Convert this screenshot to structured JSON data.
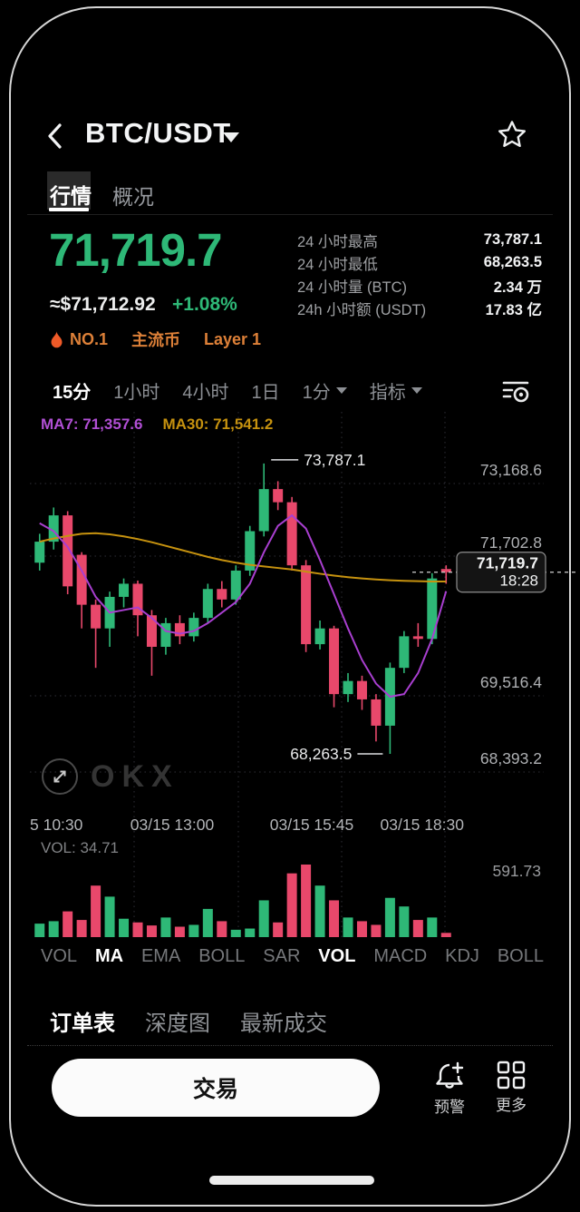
{
  "colors": {
    "up_green": "#2eb877",
    "down_red": "#e8486b",
    "ma7_purple": "#a93fd0",
    "ma30_yellow": "#c6920f",
    "badge_orange": "#dd8038",
    "grid": "#2e2e36",
    "axis_text": "#aeb0b3"
  },
  "header": {
    "title": "BTC/USDT"
  },
  "tabs": [
    {
      "label": "行情"
    },
    {
      "label": "概况"
    }
  ],
  "price": {
    "last": "71,719.7",
    "approx": "≈$71,712.92",
    "change": "+1.08%"
  },
  "badges": {
    "rank": "NO.1",
    "tag1": "主流币",
    "tag2": "Layer 1"
  },
  "stats": [
    {
      "label": "24 小时最高",
      "value": "73,787.1"
    },
    {
      "label": "24 小时最低",
      "value": "68,263.5"
    },
    {
      "label": "24 小时量 (BTC)",
      "value": "2.34 万"
    },
    {
      "label": "24h 小时额 (USDT)",
      "value": "17.83 亿"
    }
  ],
  "timeframes": [
    {
      "label": "15分"
    },
    {
      "label": "1小时"
    },
    {
      "label": "4小时"
    },
    {
      "label": "1日"
    },
    {
      "label": "1分"
    },
    {
      "label": "指标"
    }
  ],
  "chart_data": {
    "type": "candlestick",
    "ma7_label": "MA7: 71,357.6",
    "ma30_label": "MA30: 71,541.2",
    "high_label": "73,787.1",
    "low_label": "68,263.5",
    "last_price": "71,719.7",
    "last_time": "18:28",
    "vol_label": "VOL: 34.71",
    "vol_max_label": "591.73",
    "vol_max": 591.73,
    "price_range": [
      67280,
      74700
    ],
    "y_ticks": [
      "73,168.6",
      "71,702.8",
      "69,516.4",
      "68,393.2"
    ],
    "x_labels": [
      "5 10:30",
      "03/15 13:00",
      "03/15 15:45",
      "03/15 18:30"
    ],
    "candles": [
      [
        71900,
        72450,
        71750,
        72300
      ],
      [
        72300,
        72950,
        72150,
        72800
      ],
      [
        72800,
        72880,
        71300,
        71450
      ],
      [
        72050,
        72100,
        70650,
        71100
      ],
      [
        71100,
        71200,
        69900,
        70650
      ],
      [
        70650,
        71350,
        70300,
        71250
      ],
      [
        71250,
        71600,
        71050,
        71500
      ],
      [
        71500,
        71560,
        70500,
        70900
      ],
      [
        70900,
        71000,
        69750,
        70300
      ],
      [
        70300,
        70850,
        70150,
        70750
      ],
      [
        70750,
        70900,
        70350,
        70500
      ],
      [
        70500,
        70950,
        70400,
        70850
      ],
      [
        70850,
        71500,
        70750,
        71400
      ],
      [
        71400,
        71550,
        71050,
        71200
      ],
      [
        71200,
        71850,
        71100,
        71750
      ],
      [
        71750,
        72600,
        71650,
        72500
      ],
      [
        72500,
        73787.1,
        72400,
        73300
      ],
      [
        73300,
        73450,
        72900,
        73050
      ],
      [
        73050,
        73150,
        71750,
        71850
      ],
      [
        71850,
        71950,
        70200,
        70350
      ],
      [
        70350,
        70800,
        70250,
        70650
      ],
      [
        70650,
        70700,
        69150,
        69400
      ],
      [
        69400,
        69800,
        69250,
        69650
      ],
      [
        69650,
        69750,
        69100,
        69300
      ],
      [
        69300,
        69400,
        68500,
        68800
      ],
      [
        68800,
        70000,
        68263.5,
        69900
      ],
      [
        69900,
        70600,
        69800,
        70500
      ],
      [
        70500,
        70750,
        70300,
        70450
      ],
      [
        70450,
        71700,
        70350,
        71600
      ],
      [
        71780,
        71850,
        71500,
        71719.7
      ]
    ],
    "ma7": [
      72650,
      72500,
      72200,
      71750,
      71250,
      70950,
      71000,
      71050,
      70850,
      70600,
      70550,
      70600,
      70750,
      70950,
      71150,
      71500,
      72100,
      72600,
      72800,
      72550,
      71950,
      71300,
      70650,
      70050,
      69600,
      69350,
      69400,
      69800,
      70450,
      71357.6
    ],
    "ma30": [
      72300,
      72360,
      72410,
      72450,
      72460,
      72440,
      72400,
      72350,
      72290,
      72220,
      72150,
      72080,
      72010,
      71950,
      71900,
      71860,
      71830,
      71800,
      71770,
      71730,
      71690,
      71655,
      71625,
      71600,
      71580,
      71565,
      71555,
      71548,
      71543,
      71541.2
    ],
    "volumes": [
      110,
      130,
      210,
      140,
      420,
      330,
      150,
      120,
      95,
      160,
      85,
      100,
      230,
      130,
      60,
      70,
      300,
      120,
      520,
      591.73,
      420,
      300,
      160,
      130,
      100,
      320,
      250,
      140,
      160,
      34.71
    ]
  },
  "indicators": [
    {
      "label": "VOL"
    },
    {
      "label": "MA"
    },
    {
      "label": "EMA"
    },
    {
      "label": "BOLL"
    },
    {
      "label": "SAR"
    },
    {
      "label": "VOL"
    },
    {
      "label": "MACD"
    },
    {
      "label": "KDJ"
    },
    {
      "label": "BOLL"
    }
  ],
  "bottom_tabs": [
    {
      "label": "订单表"
    },
    {
      "label": "深度图"
    },
    {
      "label": "最新成交"
    }
  ],
  "footer": {
    "trade": "交易",
    "alert": "预警",
    "more": "更多"
  },
  "watermark": {
    "text": "OKX"
  }
}
